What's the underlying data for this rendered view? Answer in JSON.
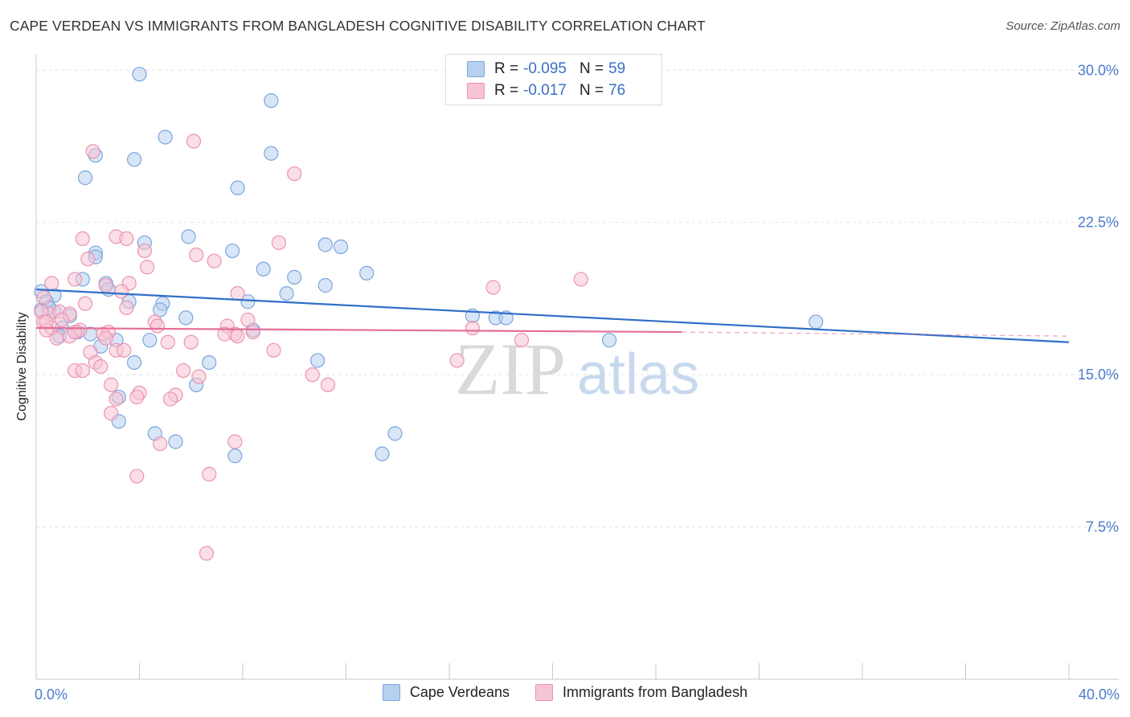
{
  "title": "CAPE VERDEAN VS IMMIGRANTS FROM BANGLADESH COGNITIVE DISABILITY CORRELATION CHART",
  "source": "Source: ZipAtlas.com",
  "watermark": {
    "zip": "ZIP",
    "atlas": "atlas"
  },
  "colors": {
    "blue_fill": "#b7d0f0",
    "blue_stroke": "#7aa6dd",
    "blue_line": "#2f6fc8",
    "pink_fill": "#f7c4d4",
    "pink_stroke": "#eb93b1",
    "pink_line": "#e36e97",
    "axis_text": "#4a7cc9",
    "grid": "#e3e3e3"
  },
  "legend": [
    {
      "r_label": "R =",
      "r_value": "-0.095",
      "n_label": "N =",
      "n_value": "59"
    },
    {
      "r_label": "R =",
      "r_value": "-0.017",
      "n_label": "N =",
      "n_value": "76"
    }
  ],
  "chart_data": {
    "type": "scatter",
    "xlabel": "",
    "ylabel": "Cognitive Disability",
    "xlim": [
      0,
      40
    ],
    "ylim": [
      0,
      31
    ],
    "x_tick_labels": [
      "0.0%",
      "40.0%"
    ],
    "y_ticks": [
      7.5,
      15.0,
      22.5,
      30.0
    ],
    "y_tick_labels": [
      "7.5%",
      "15.0%",
      "22.5%",
      "30.0%"
    ],
    "grid": "horizontal dashed",
    "legend_position": "top-center",
    "series": [
      {
        "name": "Cape Verdeans",
        "r": -0.095,
        "n": 59,
        "trend": {
          "x": [
            0,
            40
          ],
          "y": [
            19.2,
            16.6
          ]
        },
        "points": [
          [
            4.0,
            29.8
          ],
          [
            9.1,
            28.5
          ],
          [
            5.0,
            26.7
          ],
          [
            2.3,
            25.8
          ],
          [
            3.8,
            25.6
          ],
          [
            9.1,
            25.9
          ],
          [
            1.9,
            24.7
          ],
          [
            7.8,
            24.2
          ],
          [
            5.9,
            21.8
          ],
          [
            4.2,
            21.5
          ],
          [
            11.2,
            21.4
          ],
          [
            11.8,
            21.3
          ],
          [
            2.3,
            21.0
          ],
          [
            7.6,
            21.1
          ],
          [
            8.8,
            20.2
          ],
          [
            2.3,
            20.8
          ],
          [
            12.8,
            20.0
          ],
          [
            10.0,
            19.8
          ],
          [
            1.8,
            19.7
          ],
          [
            2.7,
            19.5
          ],
          [
            11.2,
            19.4
          ],
          [
            2.8,
            19.2
          ],
          [
            9.7,
            19.0
          ],
          [
            0.2,
            19.1
          ],
          [
            0.7,
            18.9
          ],
          [
            0.4,
            18.6
          ],
          [
            8.2,
            18.6
          ],
          [
            4.9,
            18.5
          ],
          [
            3.6,
            18.6
          ],
          [
            0.2,
            18.2
          ],
          [
            0.7,
            18.1
          ],
          [
            4.8,
            18.2
          ],
          [
            1.3,
            17.9
          ],
          [
            5.8,
            17.8
          ],
          [
            16.9,
            17.9
          ],
          [
            17.8,
            17.8
          ],
          [
            18.2,
            17.8
          ],
          [
            30.2,
            17.6
          ],
          [
            1.0,
            17.3
          ],
          [
            1.6,
            17.1
          ],
          [
            2.1,
            17.0
          ],
          [
            8.4,
            17.2
          ],
          [
            0.9,
            16.9
          ],
          [
            3.1,
            16.7
          ],
          [
            4.4,
            16.7
          ],
          [
            22.2,
            16.7
          ],
          [
            2.5,
            16.4
          ],
          [
            3.8,
            15.6
          ],
          [
            6.7,
            15.6
          ],
          [
            10.9,
            15.7
          ],
          [
            6.2,
            14.5
          ],
          [
            3.2,
            13.9
          ],
          [
            3.2,
            12.7
          ],
          [
            4.6,
            12.1
          ],
          [
            13.9,
            12.1
          ],
          [
            5.4,
            11.7
          ],
          [
            7.7,
            11.0
          ],
          [
            13.4,
            11.1
          ],
          [
            0.5,
            18.3
          ]
        ]
      },
      {
        "name": "Immigrants from Bangladesh",
        "r": -0.017,
        "n": 76,
        "trend": {
          "x": [
            0,
            25
          ],
          "y": [
            17.3,
            17.1
          ]
        },
        "trend_dashed": {
          "x": [
            25,
            40
          ],
          "y": [
            17.1,
            16.9
          ]
        },
        "points": [
          [
            6.1,
            26.5
          ],
          [
            2.2,
            26.0
          ],
          [
            10.0,
            24.9
          ],
          [
            3.1,
            21.8
          ],
          [
            3.5,
            21.7
          ],
          [
            1.8,
            21.7
          ],
          [
            9.4,
            21.5
          ],
          [
            4.2,
            21.1
          ],
          [
            6.2,
            20.9
          ],
          [
            2.0,
            20.7
          ],
          [
            6.9,
            20.6
          ],
          [
            4.3,
            20.3
          ],
          [
            21.1,
            19.7
          ],
          [
            1.5,
            19.7
          ],
          [
            0.6,
            19.5
          ],
          [
            3.6,
            19.5
          ],
          [
            17.7,
            19.3
          ],
          [
            2.7,
            19.4
          ],
          [
            3.3,
            19.1
          ],
          [
            7.8,
            19.0
          ],
          [
            0.3,
            18.8
          ],
          [
            1.9,
            18.5
          ],
          [
            3.5,
            18.3
          ],
          [
            0.5,
            18.0
          ],
          [
            0.2,
            18.1
          ],
          [
            0.9,
            18.1
          ],
          [
            1.3,
            18.0
          ],
          [
            1.0,
            17.7
          ],
          [
            0.3,
            17.6
          ],
          [
            4.6,
            17.6
          ],
          [
            8.2,
            17.7
          ],
          [
            4.7,
            17.4
          ],
          [
            7.4,
            17.4
          ],
          [
            0.6,
            17.3
          ],
          [
            1.7,
            17.2
          ],
          [
            2.6,
            17.0
          ],
          [
            2.8,
            17.1
          ],
          [
            16.9,
            17.3
          ],
          [
            7.7,
            17.0
          ],
          [
            8.4,
            17.1
          ],
          [
            7.3,
            17.0
          ],
          [
            0.8,
            16.8
          ],
          [
            1.3,
            16.9
          ],
          [
            0.4,
            17.2
          ],
          [
            1.5,
            17.1
          ],
          [
            2.7,
            16.8
          ],
          [
            7.8,
            16.9
          ],
          [
            5.1,
            16.6
          ],
          [
            6.0,
            16.6
          ],
          [
            18.8,
            16.7
          ],
          [
            2.1,
            16.1
          ],
          [
            3.1,
            16.2
          ],
          [
            3.4,
            16.2
          ],
          [
            9.2,
            16.2
          ],
          [
            16.3,
            15.7
          ],
          [
            2.3,
            15.6
          ],
          [
            2.5,
            15.4
          ],
          [
            1.5,
            15.2
          ],
          [
            1.8,
            15.2
          ],
          [
            5.7,
            15.2
          ],
          [
            10.7,
            15.0
          ],
          [
            6.3,
            14.9
          ],
          [
            2.9,
            14.5
          ],
          [
            11.3,
            14.5
          ],
          [
            3.1,
            13.8
          ],
          [
            4.0,
            14.1
          ],
          [
            5.4,
            14.0
          ],
          [
            5.2,
            13.8
          ],
          [
            3.9,
            13.9
          ],
          [
            2.9,
            13.1
          ],
          [
            7.7,
            11.7
          ],
          [
            4.8,
            11.6
          ],
          [
            3.9,
            10.0
          ],
          [
            6.7,
            10.1
          ],
          [
            6.6,
            6.2
          ],
          [
            0.4,
            17.6
          ]
        ]
      }
    ]
  }
}
